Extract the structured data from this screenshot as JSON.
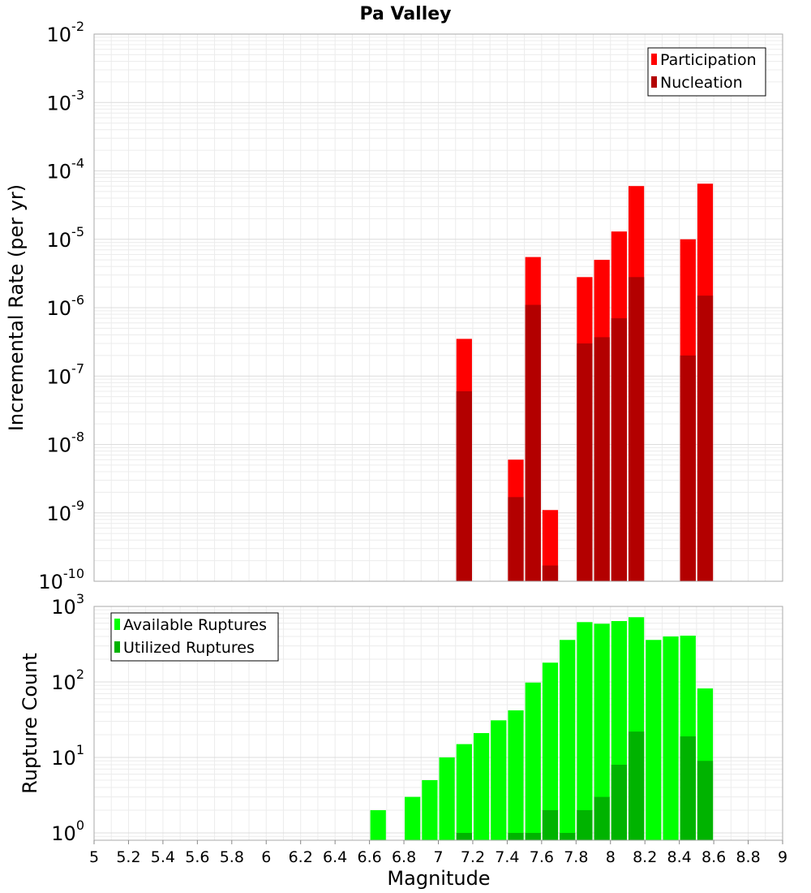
{
  "chart_data": {
    "title": "Pa Valley",
    "xlabel": "Magnitude",
    "xlim": [
      5,
      9
    ],
    "x_ticks": [
      "5",
      "5.2",
      "5.4",
      "5.6",
      "5.8",
      "6",
      "6.2",
      "6.4",
      "6.6",
      "6.8",
      "7",
      "7.2",
      "7.4",
      "7.6",
      "7.8",
      "8",
      "8.2",
      "8.4",
      "8.6",
      "8.8",
      "9"
    ],
    "bin_width": 0.1,
    "panels": [
      {
        "type": "bar",
        "ylabel": "Incremental Rate (per yr)",
        "yscale": "log",
        "ylim": [
          1e-10,
          0.01
        ],
        "y_tick_exponents": [
          -10,
          -9,
          -8,
          -7,
          -6,
          -5,
          -4,
          -3,
          -2
        ],
        "grid": true,
        "legend_position": "top-right",
        "series": [
          {
            "name": "Participation",
            "color": "#ff0000",
            "x": [
              7.15,
              7.45,
              7.55,
              7.65,
              7.85,
              7.95,
              8.05,
              8.15,
              8.45,
              8.55
            ],
            "values": [
              3.5e-07,
              6e-09,
              5.5e-06,
              1.1e-09,
              2.8e-06,
              5e-06,
              1.3e-05,
              6e-05,
              1e-05,
              6.5e-05
            ]
          },
          {
            "name": "Nucleation",
            "color": "#b30000",
            "x": [
              7.15,
              7.45,
              7.55,
              7.65,
              7.85,
              7.95,
              8.05,
              8.15,
              8.45,
              8.55
            ],
            "values": [
              6e-08,
              1.7e-09,
              1.1e-06,
              1.7e-10,
              3e-07,
              3.7e-07,
              7e-07,
              2.8e-06,
              2e-07,
              1.5e-06
            ]
          }
        ]
      },
      {
        "type": "bar",
        "ylabel": "Rupture Count",
        "yscale": "log",
        "ylim": [
          0.8,
          1000
        ],
        "y_tick_exponents": [
          0,
          1,
          2,
          3
        ],
        "grid": true,
        "legend_position": "top-left",
        "series": [
          {
            "name": "Available Ruptures",
            "color": "#00ff00",
            "x": [
              6.65,
              6.85,
              6.95,
              7.05,
              7.15,
              7.25,
              7.35,
              7.45,
              7.55,
              7.65,
              7.75,
              7.85,
              7.95,
              8.05,
              8.15,
              8.25,
              8.35,
              8.45,
              8.55
            ],
            "values": [
              2,
              3,
              5,
              10,
              15,
              21,
              31,
              42,
              98,
              180,
              360,
              620,
              590,
              640,
              720,
              360,
              400,
              410,
              82
            ]
          },
          {
            "name": "Utilized Ruptures",
            "color": "#00b300",
            "x": [
              7.15,
              7.45,
              7.55,
              7.65,
              7.75,
              7.85,
              7.95,
              8.05,
              8.15,
              8.45,
              8.55
            ],
            "values": [
              1,
              1,
              1,
              2,
              1,
              2,
              3,
              8,
              22,
              19,
              9
            ]
          }
        ]
      }
    ]
  }
}
